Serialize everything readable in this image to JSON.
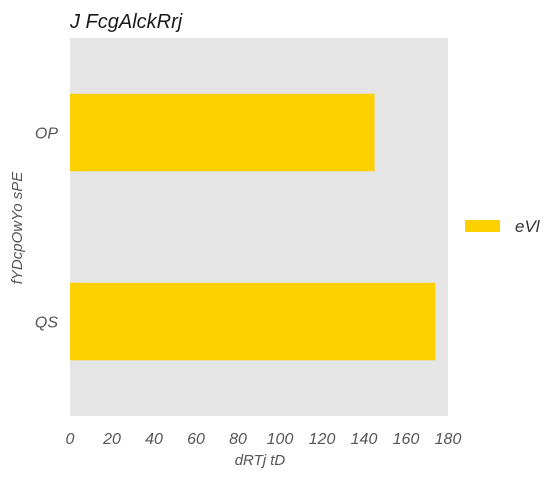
{
  "chart_data": {
    "type": "bar",
    "orientation": "horizontal",
    "title": "J FcgAlckRrj",
    "xlabel": "dRTj tD",
    "ylabel": "fYDcpOwYo sPE",
    "categories": [
      "OP",
      "QS"
    ],
    "series": [
      {
        "name": "eVl",
        "values": [
          145,
          174
        ],
        "color": "#fdd000"
      }
    ],
    "xlim": [
      0,
      180
    ],
    "xticks": [
      "0",
      "20",
      "40",
      "60",
      "80",
      "100",
      "120",
      "140",
      "160",
      "180"
    ],
    "grid": false,
    "legend_position": "right",
    "plot_background": "#e5e5e5"
  }
}
